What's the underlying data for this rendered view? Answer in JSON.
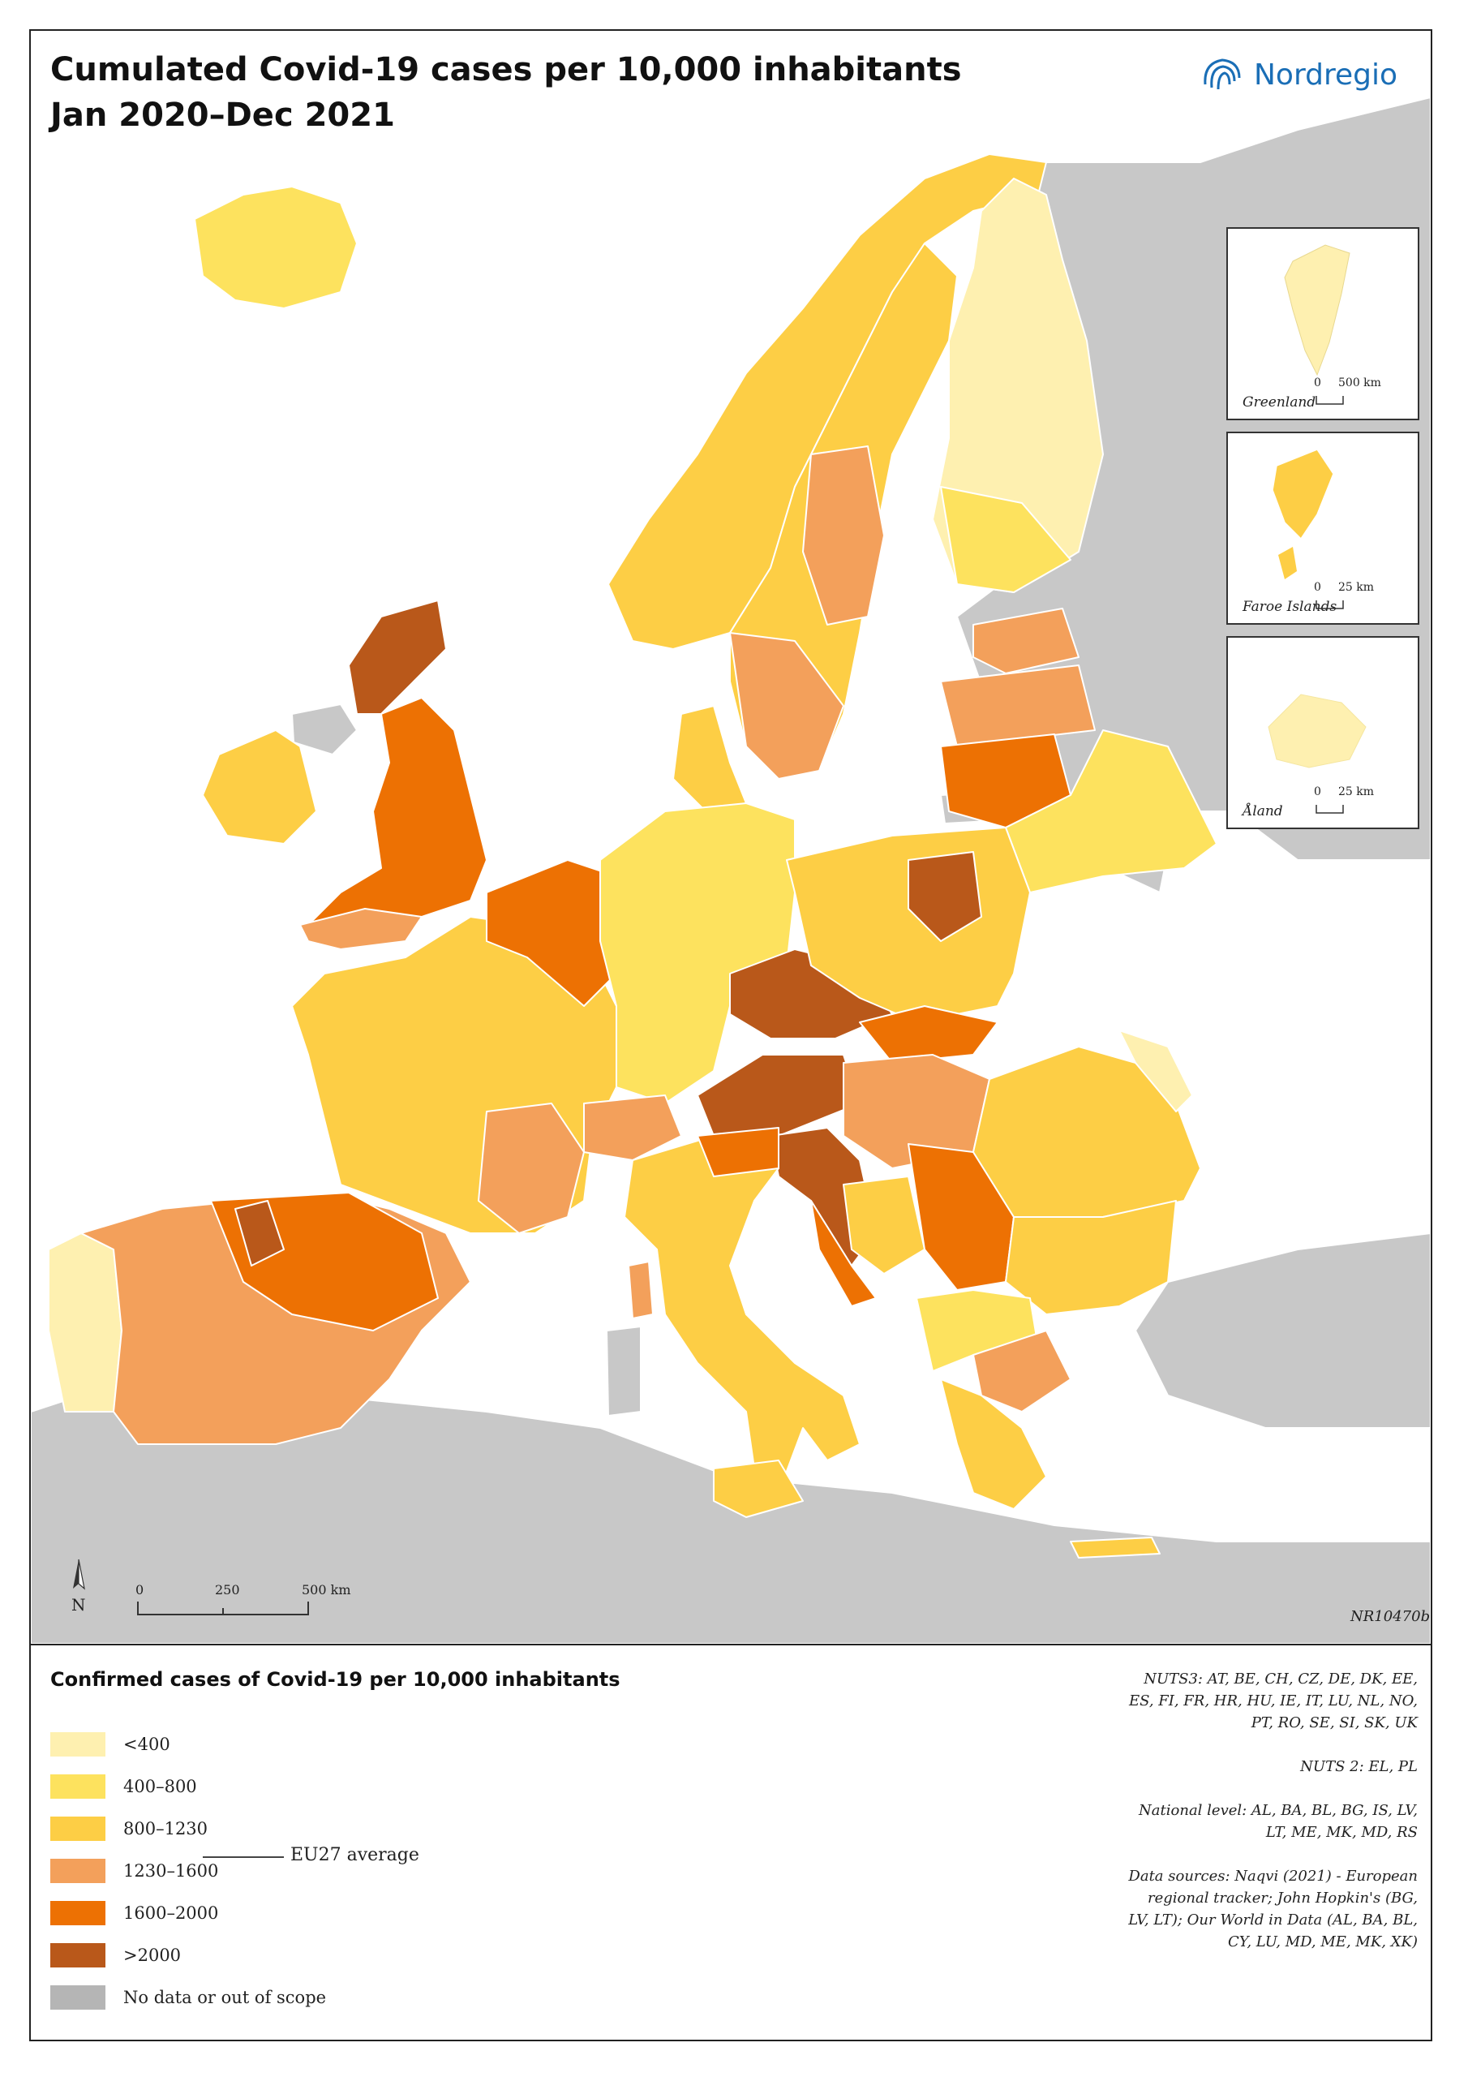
{
  "title": {
    "line1": "Cumulated Covid-19 cases per 10,000 inhabitants",
    "line2": "Jan 2020–Dec 2021"
  },
  "brand": {
    "name": "Nordregio",
    "color": "#1a6eb6",
    "icon": "nordregio-logo-icon"
  },
  "colors": {
    "sea": "#ffffff",
    "outside": "#c8c8c8",
    "border": "#ffffff"
  },
  "insets": [
    {
      "label": "Greenland",
      "scale_zero": "0",
      "scale_max": "500 km"
    },
    {
      "label": "Faroe Islands",
      "scale_zero": "0",
      "scale_max": "25 km"
    },
    {
      "label": "Åland",
      "scale_zero": "0",
      "scale_max": "25 km"
    }
  ],
  "map_scale": {
    "zero": "0",
    "mid": "250",
    "max": "500 km",
    "north": "N"
  },
  "map_code": "NR10470b",
  "legend": {
    "title": "Confirmed cases of Covid-19 per 10,000 inhabitants",
    "classes": [
      {
        "label": "<400",
        "color": "#fef0b0"
      },
      {
        "label": "400–800",
        "color": "#fde25e"
      },
      {
        "label": "800–1230",
        "color": "#fdce45"
      },
      {
        "label": "1230–1600",
        "color": "#f3a05b"
      },
      {
        "label": "1600–2000",
        "color": "#ed7103"
      },
      {
        "label": ">2000",
        "color": "#b9581a"
      },
      {
        "label": "No data or out of scope",
        "color": "#b5b5b5"
      }
    ],
    "average_label": "EU27 average"
  },
  "notes": {
    "nuts3": "NUTS3: AT, BE, CH, CZ, DE, DK, EE, ES, FI, FR, HR, HU, IE, IT, LU, NL, NO, PT, RO, SE, SI, SK, UK",
    "nuts2": "NUTS 2: EL, PL",
    "national": "National level: AL, BA, BL, BG, IS, LV, LT, ME, MK, MD, RS",
    "sources": "Data sources: Naqvi (2021) - European regional tracker; John Hopkin's (BG, LV, LT); Our World in Data (AL, BA, BL, CY, LU, MD, ME, MK, XK)"
  }
}
